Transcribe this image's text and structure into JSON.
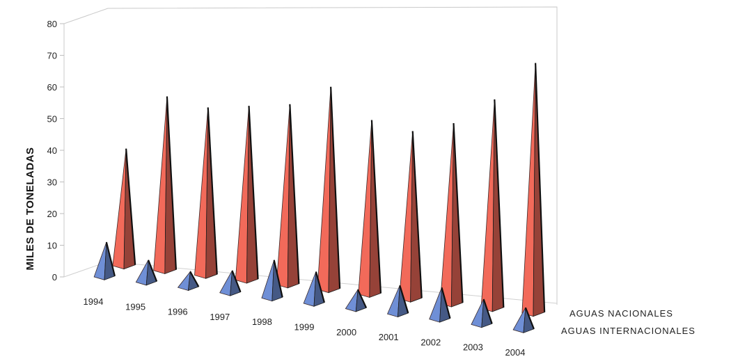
{
  "chart_data": {
    "type": "bar",
    "style": "3d-pyramid",
    "ylabel": "MILES DE TONELADAS",
    "ylim": [
      0,
      80
    ],
    "yticks": [
      0,
      10,
      20,
      30,
      40,
      50,
      60,
      70,
      80
    ],
    "categories": [
      "1994",
      "1995",
      "1996",
      "1997",
      "1998",
      "1999",
      "2000",
      "2001",
      "2002",
      "2003",
      "2004"
    ],
    "series": [
      {
        "name": "AGUAS NACIONALES",
        "color": "#f26a5a",
        "values": [
          37,
          55,
          53,
          55,
          57,
          64,
          55,
          53,
          57,
          66,
          79
        ]
      },
      {
        "name": "AGUAS INTERNACIONALES",
        "color": "#6f8fd6",
        "values": [
          11,
          7,
          5,
          7,
          12,
          10,
          6,
          9,
          10,
          8,
          7
        ]
      }
    ]
  }
}
